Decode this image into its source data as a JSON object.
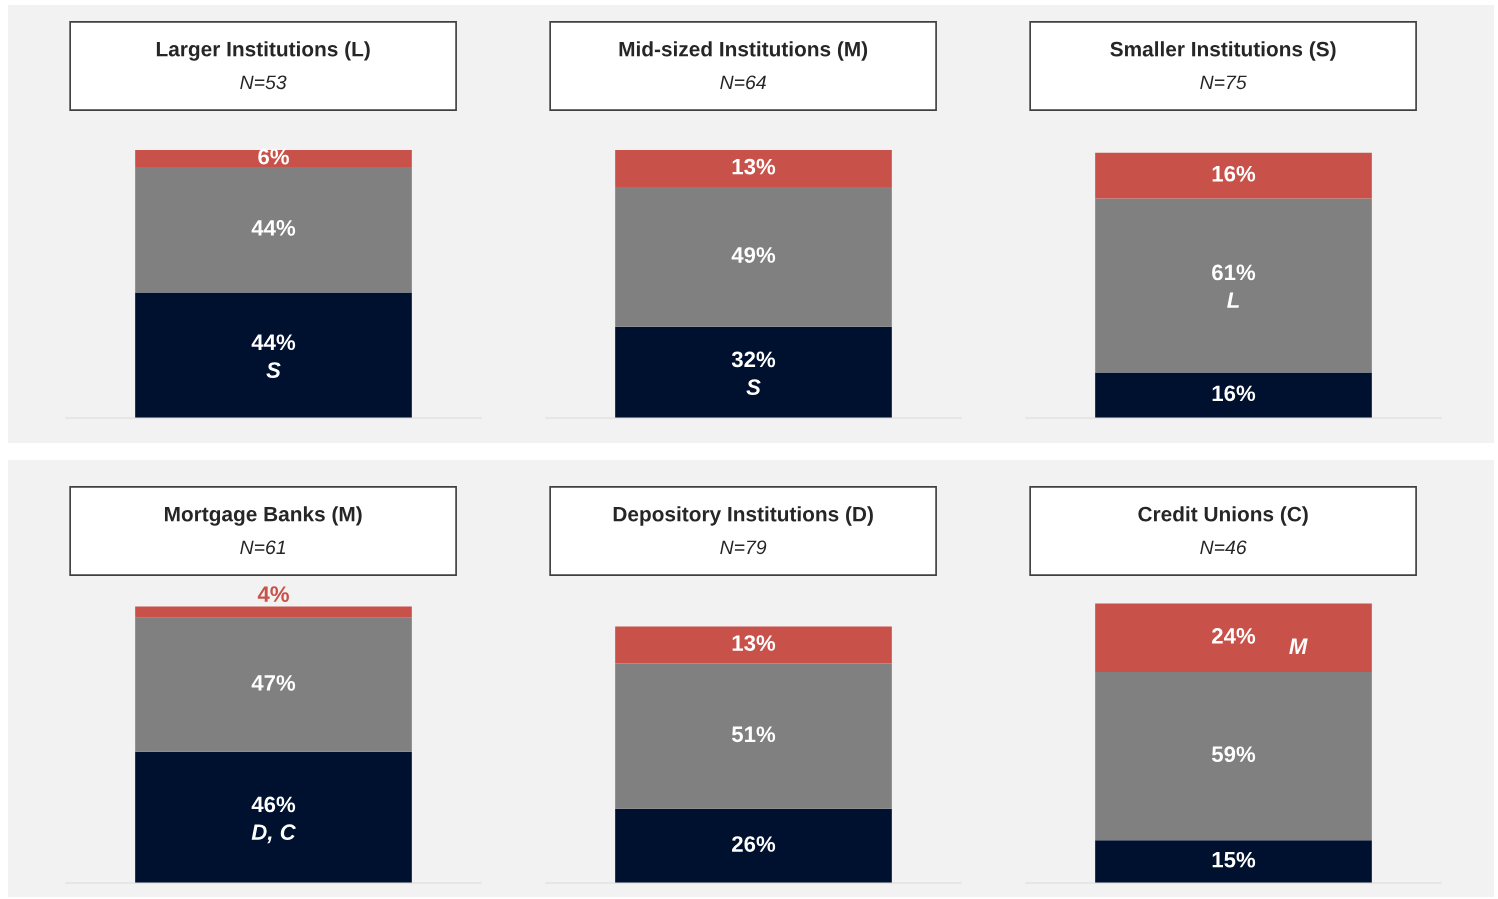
{
  "chart_data": [
    {
      "type": "bar",
      "stacked": true,
      "title": "Larger Institutions (L)",
      "subtitle": "N=53",
      "categories": [
        null
      ],
      "series": [
        {
          "color": "#001130",
          "values": [
            44
          ],
          "value_labels": [
            "44%\nS"
          ]
        },
        {
          "color": "#808080",
          "values": [
            44
          ],
          "value_labels": [
            "44%"
          ]
        },
        {
          "color": "#c8524a",
          "values": [
            6
          ],
          "value_labels": [
            "6%"
          ]
        }
      ]
    },
    {
      "type": "bar",
      "stacked": true,
      "title": "Mid-sized Institutions (M)",
      "subtitle": "N=64",
      "categories": [
        null
      ],
      "series": [
        {
          "color": "#001130",
          "values": [
            32
          ],
          "value_labels": [
            "32%\nS"
          ]
        },
        {
          "color": "#808080",
          "values": [
            49
          ],
          "value_labels": [
            "49%"
          ]
        },
        {
          "color": "#c8524a",
          "values": [
            13
          ],
          "value_labels": [
            "13%"
          ]
        }
      ]
    },
    {
      "type": "bar",
      "stacked": true,
      "title": "Smaller Institutions (S)",
      "subtitle": "N=75",
      "categories": [
        null
      ],
      "series": [
        {
          "color": "#001130",
          "values": [
            16
          ],
          "value_labels": [
            "16%"
          ]
        },
        {
          "color": "#808080",
          "values": [
            61
          ],
          "value_labels": [
            "61%\nL"
          ]
        },
        {
          "color": "#c8524a",
          "values": [
            16
          ],
          "value_labels": [
            "16%"
          ]
        }
      ]
    },
    {
      "type": "bar",
      "stacked": true,
      "title": "Mortgage Banks (M)",
      "subtitle": "N=61",
      "categories": [
        null
      ],
      "series": [
        {
          "color": "#001130",
          "values": [
            46
          ],
          "value_labels": [
            "46%\nD, C"
          ]
        },
        {
          "color": "#808080",
          "values": [
            47
          ],
          "value_labels": [
            "47%"
          ]
        },
        {
          "color": "#c8524a",
          "values": [
            4
          ],
          "value_labels": [
            "4%"
          ]
        }
      ]
    },
    {
      "type": "bar",
      "stacked": true,
      "title": "Depository Institutions (D)",
      "subtitle": "N=79",
      "categories": [
        null
      ],
      "series": [
        {
          "color": "#001130",
          "values": [
            26
          ],
          "value_labels": [
            "26%"
          ]
        },
        {
          "color": "#808080",
          "values": [
            51
          ],
          "value_labels": [
            "51%"
          ]
        },
        {
          "color": "#c8524a",
          "values": [
            13
          ],
          "value_labels": [
            "13%"
          ]
        }
      ]
    },
    {
      "type": "bar",
      "stacked": true,
      "title": "Credit Unions (C)",
      "subtitle": "N=46",
      "categories": [
        null
      ],
      "series": [
        {
          "color": "#001130",
          "values": [
            15
          ],
          "value_labels": [
            "15%"
          ]
        },
        {
          "color": "#808080",
          "values": [
            59
          ],
          "value_labels": [
            "59%"
          ]
        },
        {
          "color": "#c8524a",
          "values": [
            24
          ],
          "value_labels": [
            "24%\tM"
          ]
        }
      ]
    }
  ]
}
